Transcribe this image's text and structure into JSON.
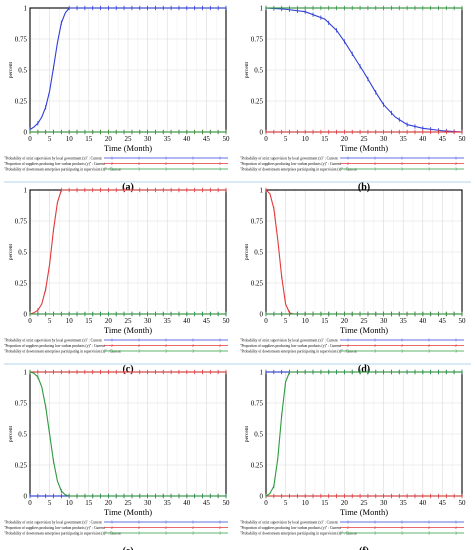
{
  "legend_labels": [
    "\"Probability of strict supervision by local government (x)\" : Current",
    "\"Proportion of suppliers producing low-carbon products (y)\" : Current",
    "\"Probability of downstream enterprises participating in supervision (z)\" : Current"
  ],
  "colors": {
    "x": "#2f3fd8",
    "y": "#e0393b",
    "z": "#2e9a3e",
    "axis": "#000000",
    "grid": "#d9d9d9"
  },
  "chart_data": [
    {
      "type": "line",
      "panel_label": "(a)",
      "xlabel": "Time (Month)",
      "ylabel": "percent",
      "xlim": [
        0,
        50
      ],
      "ylim": [
        0,
        1
      ],
      "xticks": [
        "0",
        "5",
        "10",
        "15",
        "20",
        "25",
        "30",
        "35",
        "40",
        "45",
        "50"
      ],
      "yticks": [
        "0",
        "0.25",
        "0.5",
        "0.75",
        "1"
      ],
      "series": [
        {
          "key": "x",
          "markers": [
            "1",
            "1",
            "1",
            "1",
            "1",
            "1",
            "1",
            "1",
            "1",
            "1",
            "1",
            "1",
            "1",
            "1",
            "1",
            "1",
            "1",
            "1",
            "1",
            "1",
            "1",
            "1",
            "1",
            "1",
            "1",
            "1"
          ],
          "points": [
            [
              0,
              0.02
            ],
            [
              1,
              0.04
            ],
            [
              2,
              0.07
            ],
            [
              3,
              0.12
            ],
            [
              4,
              0.2
            ],
            [
              5,
              0.33
            ],
            [
              6,
              0.52
            ],
            [
              7,
              0.72
            ],
            [
              8,
              0.88
            ],
            [
              9,
              0.96
            ],
            [
              10,
              1
            ],
            [
              15,
              1
            ],
            [
              20,
              1
            ],
            [
              30,
              1
            ],
            [
              40,
              1
            ],
            [
              50,
              1
            ]
          ]
        },
        {
          "key": "y",
          "markers": [
            "2",
            "2",
            "2",
            "2",
            "2",
            "2",
            "2",
            "2",
            "2",
            "2",
            "2",
            "2",
            "2",
            "2",
            "2",
            "2",
            "2",
            "2",
            "2",
            "2",
            "2",
            "2",
            "2",
            "2",
            "2",
            "2"
          ],
          "points": [
            [
              0,
              0.0
            ],
            [
              50,
              0.0
            ]
          ]
        },
        {
          "key": "z",
          "markers": [
            "3",
            "3",
            "3",
            "3",
            "3",
            "3",
            "3",
            "3",
            "3",
            "3",
            "3",
            "3",
            "3",
            "3",
            "3",
            "3",
            "3",
            "3",
            "3",
            "3",
            "3",
            "3",
            "3",
            "3",
            "3",
            "3"
          ],
          "points": [
            [
              0,
              0.0
            ],
            [
              50,
              0.0
            ]
          ]
        }
      ]
    },
    {
      "type": "line",
      "panel_label": "(b)",
      "xlabel": "Time (Month)",
      "ylabel": "percent",
      "xlim": [
        0,
        50
      ],
      "ylim": [
        0,
        1
      ],
      "xticks": [
        "0",
        "5",
        "10",
        "15",
        "20",
        "25",
        "30",
        "35",
        "40",
        "45",
        "50"
      ],
      "yticks": [
        "0",
        "0.25",
        "0.5",
        "0.75",
        "1"
      ],
      "series": [
        {
          "key": "x",
          "markers": [
            "1",
            "1",
            "1",
            "1",
            "1",
            "1",
            "1",
            "1",
            "1",
            "1",
            "1",
            "1",
            "1",
            "1",
            "1",
            "1",
            "1",
            "1",
            "1",
            "1",
            "1",
            "1",
            "1",
            "1",
            "1",
            "1"
          ],
          "points": [
            [
              0,
              1.0
            ],
            [
              5,
              0.99
            ],
            [
              10,
              0.97
            ],
            [
              15,
              0.91
            ],
            [
              18,
              0.82
            ],
            [
              20,
              0.73
            ],
            [
              22,
              0.63
            ],
            [
              25,
              0.48
            ],
            [
              28,
              0.32
            ],
            [
              30,
              0.22
            ],
            [
              33,
              0.12
            ],
            [
              36,
              0.06
            ],
            [
              40,
              0.03
            ],
            [
              45,
              0.01
            ],
            [
              50,
              0.0
            ]
          ]
        },
        {
          "key": "y",
          "markers": [
            "2",
            "2",
            "2",
            "2",
            "2",
            "2",
            "2",
            "2",
            "2",
            "2",
            "2",
            "2",
            "2",
            "2",
            "2",
            "2",
            "2",
            "2",
            "2",
            "2",
            "2",
            "2",
            "2",
            "2",
            "2",
            "2"
          ],
          "points": [
            [
              0,
              0.0
            ],
            [
              50,
              0.0
            ]
          ]
        },
        {
          "key": "z",
          "markers": [
            "3",
            "3",
            "3",
            "3",
            "3",
            "3",
            "3",
            "3",
            "3",
            "3",
            "3",
            "3",
            "3",
            "3",
            "3",
            "3",
            "3",
            "3",
            "3",
            "3",
            "3",
            "3",
            "3",
            "3",
            "3",
            "3"
          ],
          "points": [
            [
              0,
              1.0
            ],
            [
              50,
              1.0
            ]
          ]
        }
      ]
    },
    {
      "type": "line",
      "panel_label": "(c)",
      "xlabel": "Time (Month)",
      "ylabel": "percent",
      "xlim": [
        0,
        50
      ],
      "ylim": [
        0,
        1
      ],
      "xticks": [
        "0",
        "5",
        "10",
        "15",
        "20",
        "25",
        "30",
        "35",
        "40",
        "45",
        "50"
      ],
      "yticks": [
        "0",
        "0.25",
        "0.5",
        "0.75",
        "1"
      ],
      "series": [
        {
          "key": "x",
          "markers": [
            "1",
            "1",
            "1",
            "1",
            "1",
            "1",
            "1",
            "1",
            "1",
            "1",
            "1",
            "1",
            "1",
            "1",
            "1",
            "1",
            "1",
            "1",
            "1",
            "1",
            "1",
            "1",
            "1",
            "1",
            "1",
            "1"
          ],
          "points": [
            [
              0,
              0.0
            ],
            [
              50,
              0.0
            ]
          ]
        },
        {
          "key": "y",
          "markers": [
            "2",
            "2",
            "2",
            "2",
            "2",
            "2",
            "2",
            "2",
            "2",
            "2",
            "2",
            "2",
            "2",
            "2",
            "2",
            "2",
            "2",
            "2",
            "2",
            "2",
            "2",
            "2",
            "2",
            "2",
            "2",
            "2"
          ],
          "points": [
            [
              0,
              0.0
            ],
            [
              1,
              0.01
            ],
            [
              2,
              0.03
            ],
            [
              3,
              0.08
            ],
            [
              4,
              0.2
            ],
            [
              5,
              0.4
            ],
            [
              6,
              0.68
            ],
            [
              7,
              0.9
            ],
            [
              8,
              1
            ],
            [
              10,
              1
            ],
            [
              20,
              1
            ],
            [
              30,
              1
            ],
            [
              40,
              1
            ],
            [
              50,
              1
            ]
          ]
        },
        {
          "key": "z",
          "markers": [
            "3",
            "3",
            "3",
            "3",
            "3",
            "3",
            "3",
            "3",
            "3",
            "3",
            "3",
            "3",
            "3",
            "3",
            "3",
            "3",
            "3",
            "3",
            "3",
            "3",
            "3",
            "3",
            "3",
            "3",
            "3",
            "3"
          ],
          "points": [
            [
              0,
              0.0
            ],
            [
              50,
              0.0
            ]
          ]
        }
      ]
    },
    {
      "type": "line",
      "panel_label": "(d)",
      "xlabel": "Time (Month)",
      "ylabel": "percent",
      "xlim": [
        0,
        50
      ],
      "ylim": [
        0,
        1
      ],
      "xticks": [
        "0",
        "5",
        "10",
        "15",
        "20",
        "25",
        "30",
        "35",
        "40",
        "45",
        "50"
      ],
      "yticks": [
        "0",
        "0.25",
        "0.5",
        "0.75",
        "1"
      ],
      "series": [
        {
          "key": "x",
          "markers": [
            "1",
            "1",
            "1",
            "1",
            "1",
            "1",
            "1",
            "1",
            "1",
            "1",
            "1",
            "1",
            "1",
            "1",
            "1",
            "1",
            "1",
            "1",
            "1",
            "1",
            "1",
            "1",
            "1",
            "1",
            "1",
            "1"
          ],
          "points": [
            [
              0,
              0.0
            ],
            [
              50,
              0.0
            ]
          ]
        },
        {
          "key": "y",
          "markers": [
            "2",
            "2",
            "2",
            "2",
            "2",
            "2",
            "2",
            "2",
            "2",
            "2",
            "2",
            "2",
            "2",
            "2",
            "2",
            "2",
            "2",
            "2",
            "2",
            "2",
            "2",
            "2",
            "2",
            "2",
            "2",
            "2"
          ],
          "points": [
            [
              0,
              1.0
            ],
            [
              1,
              0.97
            ],
            [
              2,
              0.85
            ],
            [
              3,
              0.6
            ],
            [
              4,
              0.3
            ],
            [
              5,
              0.08
            ],
            [
              6,
              0.01
            ],
            [
              7,
              0.0
            ],
            [
              50,
              0.0
            ]
          ]
        },
        {
          "key": "z",
          "markers": [
            "3",
            "3",
            "3",
            "3",
            "3",
            "3",
            "3",
            "3",
            "3",
            "3",
            "3",
            "3",
            "3",
            "3",
            "3",
            "3",
            "3",
            "3",
            "3",
            "3",
            "3",
            "3",
            "3",
            "3",
            "3",
            "3"
          ],
          "points": [
            [
              0,
              0.0
            ],
            [
              50,
              0.0
            ]
          ]
        }
      ]
    },
    {
      "type": "line",
      "panel_label": "(e)",
      "xlabel": "Time (Month)",
      "ylabel": "percent",
      "xlim": [
        0,
        50
      ],
      "ylim": [
        0,
        1
      ],
      "xticks": [
        "0",
        "5",
        "10",
        "15",
        "20",
        "25",
        "30",
        "35",
        "40",
        "45",
        "50"
      ],
      "yticks": [
        "0",
        "0.25",
        "0.5",
        "0.75",
        "1"
      ],
      "series": [
        {
          "key": "x",
          "markers": [
            "1",
            "1",
            "1",
            "1",
            "1",
            "1",
            "1",
            "1",
            "1",
            "1",
            "1",
            "1",
            "1",
            "1",
            "1",
            "1",
            "1",
            "1",
            "1",
            "1",
            "1",
            "1",
            "1",
            "1",
            "1",
            "1"
          ],
          "points": [
            [
              0,
              0.0
            ],
            [
              50,
              0.0
            ]
          ]
        },
        {
          "key": "y",
          "markers": [
            "2",
            "2",
            "2",
            "2",
            "2",
            "2",
            "2",
            "2",
            "2",
            "2",
            "2",
            "2",
            "2",
            "2",
            "2",
            "2",
            "2",
            "2",
            "2",
            "2",
            "2",
            "2",
            "2",
            "2",
            "2",
            "2"
          ],
          "points": [
            [
              0,
              1.0
            ],
            [
              50,
              1.0
            ]
          ]
        },
        {
          "key": "z",
          "markers": [
            "3",
            "3",
            "3",
            "3",
            "3",
            "3",
            "3",
            "3",
            "3",
            "3",
            "3",
            "3",
            "3",
            "3",
            "3",
            "3",
            "3",
            "3",
            "3",
            "3",
            "3",
            "3",
            "3",
            "3",
            "3",
            "3"
          ],
          "points": [
            [
              0,
              1.0
            ],
            [
              1,
              0.99
            ],
            [
              2,
              0.96
            ],
            [
              3,
              0.88
            ],
            [
              4,
              0.72
            ],
            [
              5,
              0.5
            ],
            [
              6,
              0.28
            ],
            [
              7,
              0.12
            ],
            [
              8,
              0.04
            ],
            [
              9,
              0.01
            ],
            [
              10,
              0.0
            ],
            [
              50,
              0.0
            ]
          ]
        }
      ]
    },
    {
      "type": "line",
      "panel_label": "(f)",
      "xlabel": "Time (Month)",
      "ylabel": "percent",
      "xlim": [
        0,
        50
      ],
      "ylim": [
        0,
        1
      ],
      "xticks": [
        "0",
        "5",
        "10",
        "15",
        "20",
        "25",
        "30",
        "35",
        "40",
        "45",
        "50"
      ],
      "yticks": [
        "0",
        "0.25",
        "0.5",
        "0.75",
        "1"
      ],
      "series": [
        {
          "key": "x",
          "markers": [
            "1",
            "1",
            "1",
            "1",
            "1",
            "1",
            "1",
            "1",
            "1",
            "1",
            "1",
            "1",
            "1",
            "1",
            "1",
            "1",
            "1",
            "1",
            "1",
            "1",
            "1",
            "1",
            "1",
            "1",
            "1",
            "1"
          ],
          "points": [
            [
              0,
              1.0
            ],
            [
              50,
              1.0
            ]
          ]
        },
        {
          "key": "y",
          "markers": [
            "2",
            "2",
            "2",
            "2",
            "2",
            "2",
            "2",
            "2",
            "2",
            "2",
            "2",
            "2",
            "2",
            "2",
            "2",
            "2",
            "2",
            "2",
            "2",
            "2",
            "2",
            "2",
            "2",
            "2",
            "2",
            "2"
          ],
          "points": [
            [
              0,
              0.0
            ],
            [
              50,
              0.0
            ]
          ]
        },
        {
          "key": "z",
          "markers": [
            "3",
            "3",
            "3",
            "3",
            "3",
            "3",
            "3",
            "3",
            "3",
            "3",
            "3",
            "3",
            "3",
            "3",
            "3",
            "3",
            "3",
            "3",
            "3",
            "3",
            "3",
            "3",
            "3",
            "3",
            "3",
            "3"
          ],
          "points": [
            [
              0,
              0.0
            ],
            [
              1,
              0.02
            ],
            [
              2,
              0.08
            ],
            [
              3,
              0.3
            ],
            [
              4,
              0.65
            ],
            [
              5,
              0.92
            ],
            [
              6,
              1.0
            ],
            [
              10,
              1.0
            ],
            [
              50,
              1.0
            ]
          ]
        }
      ]
    }
  ]
}
